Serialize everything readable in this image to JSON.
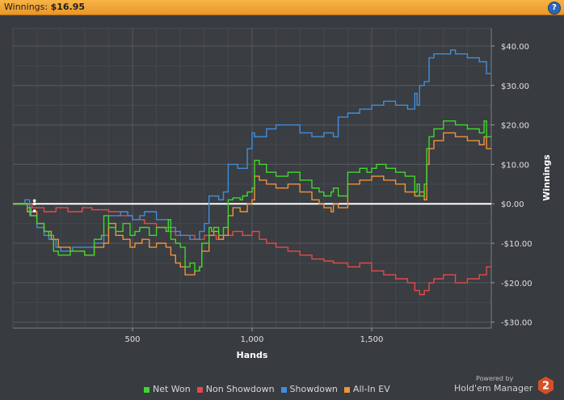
{
  "header": {
    "label": "Winnings:",
    "value": "$16.95",
    "help_glyph": "?"
  },
  "footer": {
    "powered_by": "Powered by",
    "brand": "Hold'em Manager",
    "logo_text": "2"
  },
  "colors": {
    "net_won": "#41d62f",
    "non_showdown": "#e5494b",
    "showdown": "#3d8ee0",
    "all_in_ev": "#f1933a",
    "zero_line": "#ffffff"
  },
  "chart_data": {
    "type": "line",
    "xlabel": "Hands",
    "ylabel": "Winnings",
    "xlim": [
      0,
      2000
    ],
    "ylim": [
      -31.5,
      44.5
    ],
    "x_ticks": [
      500,
      1000,
      1500
    ],
    "x_tick_labels": [
      "500",
      "1,000",
      "1,500"
    ],
    "y_ticks": [
      40,
      30,
      20,
      10,
      0,
      -10,
      -20,
      -30
    ],
    "y_tick_labels": [
      "$40.00",
      "$30.00",
      "$20.00",
      "$10.00",
      "$0.00",
      "-$10.00",
      "-$20.00",
      "-$30.00"
    ],
    "grid": true,
    "legend_position": "bottom",
    "series": [
      {
        "name": "Net Won",
        "x": [
          0,
          60,
          75,
          100,
          130,
          150,
          170,
          190,
          240,
          300,
          340,
          370,
          380,
          400,
          430,
          460,
          490,
          510,
          530,
          570,
          600,
          640,
          650,
          660,
          680,
          700,
          720,
          740,
          760,
          780,
          790,
          820,
          830,
          840,
          860,
          880,
          900,
          920,
          950,
          960,
          980,
          1000,
          1010,
          1030,
          1060,
          1100,
          1150,
          1200,
          1250,
          1280,
          1300,
          1330,
          1340,
          1360,
          1400,
          1450,
          1480,
          1500,
          1520,
          1560,
          1600,
          1640,
          1680,
          1690,
          1700,
          1720,
          1730,
          1740,
          1760,
          1800,
          1850,
          1900,
          1950,
          1970,
          1980,
          2000
        ],
        "y": [
          0,
          -1,
          -3,
          -5,
          -7,
          -8,
          -12,
          -13,
          -12,
          -13,
          -9,
          -8,
          -3,
          -6,
          -7,
          -5,
          -8,
          -7,
          -6,
          -8,
          -6,
          -7,
          -4,
          -9,
          -10,
          -11,
          -16,
          -15,
          -17,
          -16,
          -10,
          -6,
          -7,
          -6,
          -8,
          -6,
          1,
          1.5,
          1,
          2,
          3,
          4,
          11,
          10,
          8,
          7,
          8,
          6,
          4,
          3,
          2,
          3,
          4,
          2,
          8,
          9,
          8,
          9,
          10,
          9,
          8,
          7,
          3,
          5,
          2,
          5,
          14,
          17,
          19,
          21,
          20,
          19,
          18,
          21,
          17,
          16.95
        ]
      },
      {
        "name": "Non Showdown",
        "x": [
          0,
          80,
          130,
          180,
          230,
          290,
          330,
          400,
          450,
          500,
          550,
          600,
          650,
          680,
          720,
          760,
          800,
          850,
          880,
          920,
          960,
          1000,
          1030,
          1060,
          1100,
          1150,
          1200,
          1250,
          1300,
          1340,
          1400,
          1450,
          1500,
          1550,
          1600,
          1650,
          1680,
          1700,
          1720,
          1740,
          1760,
          1800,
          1850,
          1900,
          1950,
          1980,
          2000
        ],
        "y": [
          0,
          -1,
          -2,
          -1,
          -2,
          -1,
          -1.5,
          -2,
          -3,
          -4,
          -5,
          -6,
          -7,
          -8,
          -8,
          -9,
          -8,
          -9,
          -8,
          -7,
          -8,
          -7,
          -9,
          -10,
          -11,
          -12,
          -13,
          -14,
          -14.5,
          -15,
          -16,
          -15,
          -17,
          -18,
          -19,
          -20,
          -22,
          -23,
          -22,
          -20,
          -19,
          -18,
          -20,
          -19,
          -18,
          -16,
          -16
        ]
      },
      {
        "name": "Showdown",
        "x": [
          0,
          50,
          70,
          100,
          130,
          150,
          180,
          200,
          250,
          300,
          340,
          380,
          400,
          450,
          480,
          500,
          530,
          550,
          600,
          650,
          680,
          700,
          740,
          780,
          800,
          820,
          840,
          860,
          880,
          900,
          920,
          940,
          980,
          1000,
          1010,
          1060,
          1100,
          1150,
          1200,
          1250,
          1300,
          1340,
          1360,
          1400,
          1450,
          1500,
          1550,
          1600,
          1640,
          1650,
          1680,
          1690,
          1700,
          1720,
          1740,
          1760,
          1800,
          1830,
          1850,
          1900,
          1950,
          1980,
          2000
        ],
        "y": [
          0,
          1,
          -3,
          -6,
          -8,
          -9,
          -11,
          -12,
          -11,
          -11,
          -10,
          -8,
          -3,
          -2,
          -3,
          -4,
          -3,
          -2,
          -4,
          -6,
          -7,
          -8,
          -9,
          -7,
          -5,
          2,
          2,
          1,
          3,
          10,
          10,
          9,
          14,
          18,
          17,
          19,
          20,
          20,
          18,
          17,
          18,
          17,
          22,
          23,
          24,
          25,
          26,
          25,
          25,
          24,
          28,
          25,
          30,
          31,
          37,
          38,
          38,
          39,
          38,
          37,
          36,
          33,
          33
        ]
      },
      {
        "name": "All-In EV",
        "x": [
          0,
          60,
          100,
          130,
          160,
          190,
          240,
          300,
          340,
          380,
          400,
          430,
          460,
          490,
          510,
          540,
          570,
          600,
          640,
          660,
          680,
          700,
          720,
          740,
          760,
          780,
          790,
          820,
          840,
          860,
          880,
          900,
          920,
          950,
          980,
          1000,
          1010,
          1030,
          1060,
          1100,
          1150,
          1200,
          1250,
          1280,
          1300,
          1330,
          1340,
          1360,
          1400,
          1450,
          1500,
          1550,
          1600,
          1640,
          1680,
          1700,
          1720,
          1730,
          1740,
          1760,
          1800,
          1850,
          1900,
          1950,
          1970,
          1980,
          2000
        ],
        "y": [
          0,
          -2,
          -5,
          -7,
          -9,
          -11,
          -12,
          -13,
          -11,
          -10,
          -5,
          -8,
          -9,
          -11,
          -10,
          -9,
          -11,
          -10,
          -11,
          -13,
          -15,
          -16,
          -18,
          -18,
          -17,
          -16,
          -12,
          -8,
          -7,
          -9,
          -8,
          -3,
          -1,
          -2,
          0,
          1,
          7,
          6,
          5,
          4,
          5,
          3,
          1,
          0,
          -1,
          -2,
          0,
          -1,
          5,
          6,
          7,
          6,
          5,
          3,
          2,
          3,
          1,
          10,
          14,
          16,
          18,
          17,
          16,
          15,
          17,
          14,
          14
        ]
      }
    ]
  }
}
